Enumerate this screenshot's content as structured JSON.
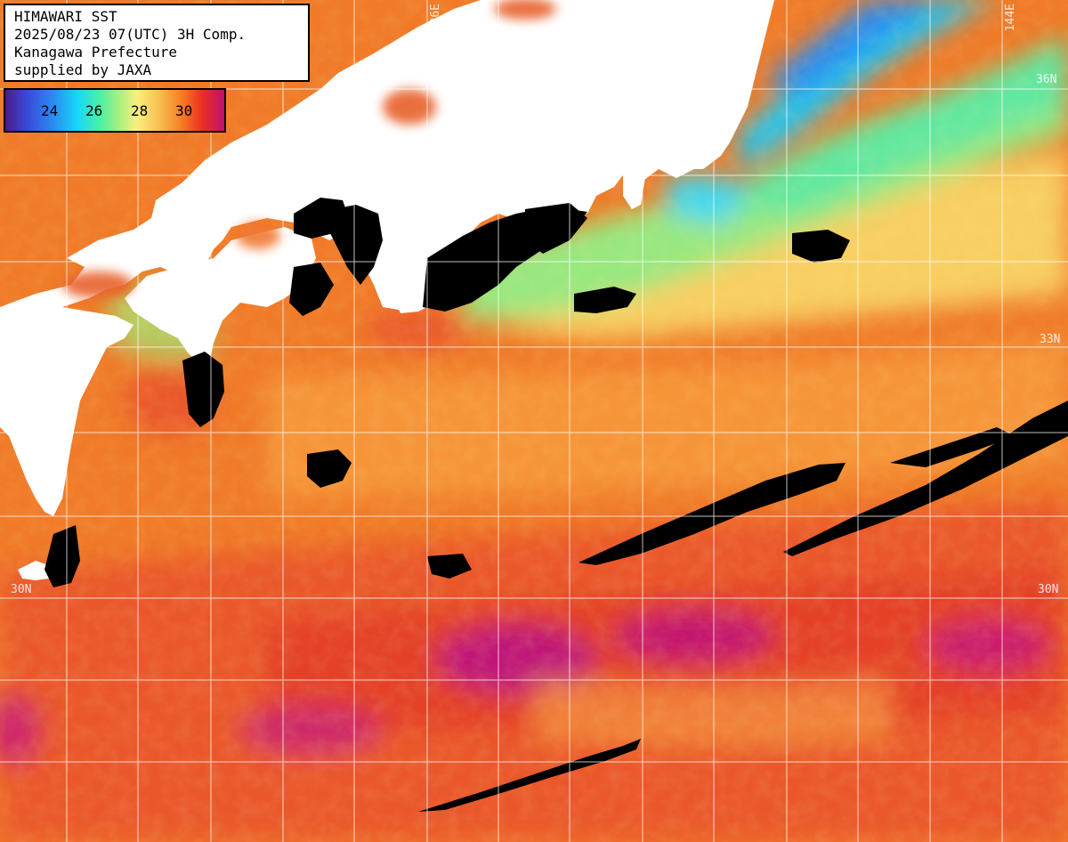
{
  "info": {
    "title": "HIMAWARI SST",
    "datetime": "2025/08/23 07(UTC) 3H Comp.",
    "region": "Kanagawa Prefecture",
    "supplier": "supplied by JAXA"
  },
  "legend": {
    "labels": [
      "24",
      "26",
      "28",
      "30"
    ],
    "unit": ""
  },
  "grid_labels": {
    "lon_136": "136E",
    "lon_144": "144E",
    "lat_36_right": "36N",
    "lat_33_left": "33N",
    "lat_33_right": "33N",
    "lat_30_left": "30N",
    "lat_30_right": "30N"
  },
  "colors": {
    "land": "#ffffff",
    "cloud": "#000000",
    "warm_sea": "#f07a28",
    "hot_sea": "#c01070",
    "cool_sea": "#80f090",
    "cold_sea": "#20c8f0",
    "grid": "#ffffff"
  }
}
